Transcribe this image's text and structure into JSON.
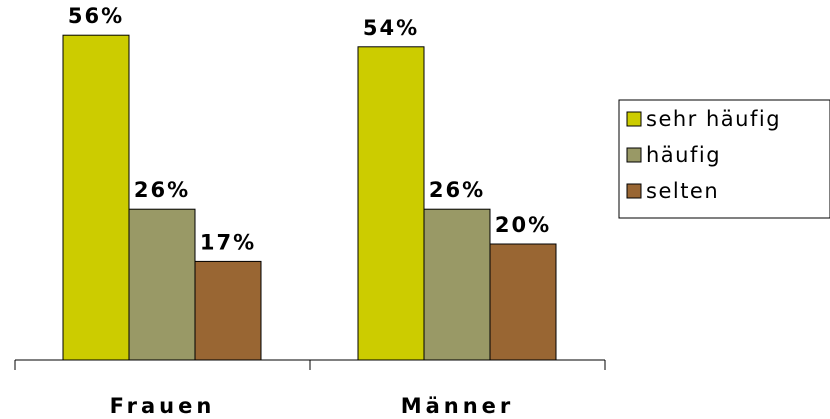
{
  "chart_data": {
    "type": "bar",
    "categories": [
      "Frauen",
      "Männer"
    ],
    "series": [
      {
        "name": "sehr häufig",
        "values": [
          56,
          54
        ],
        "labels": [
          "56%",
          "54%"
        ],
        "color": "#cccc00"
      },
      {
        "name": "häufig",
        "values": [
          26,
          26
        ],
        "labels": [
          "26%",
          "26%"
        ],
        "color": "#999966"
      },
      {
        "name": "selten",
        "values": [
          17,
          20
        ],
        "labels": [
          "17%",
          "20%"
        ],
        "color": "#996633"
      }
    ],
    "title": "",
    "xlabel": "",
    "ylabel": "",
    "ylim": [
      0,
      60
    ],
    "grid": false,
    "legend_position": "right"
  }
}
